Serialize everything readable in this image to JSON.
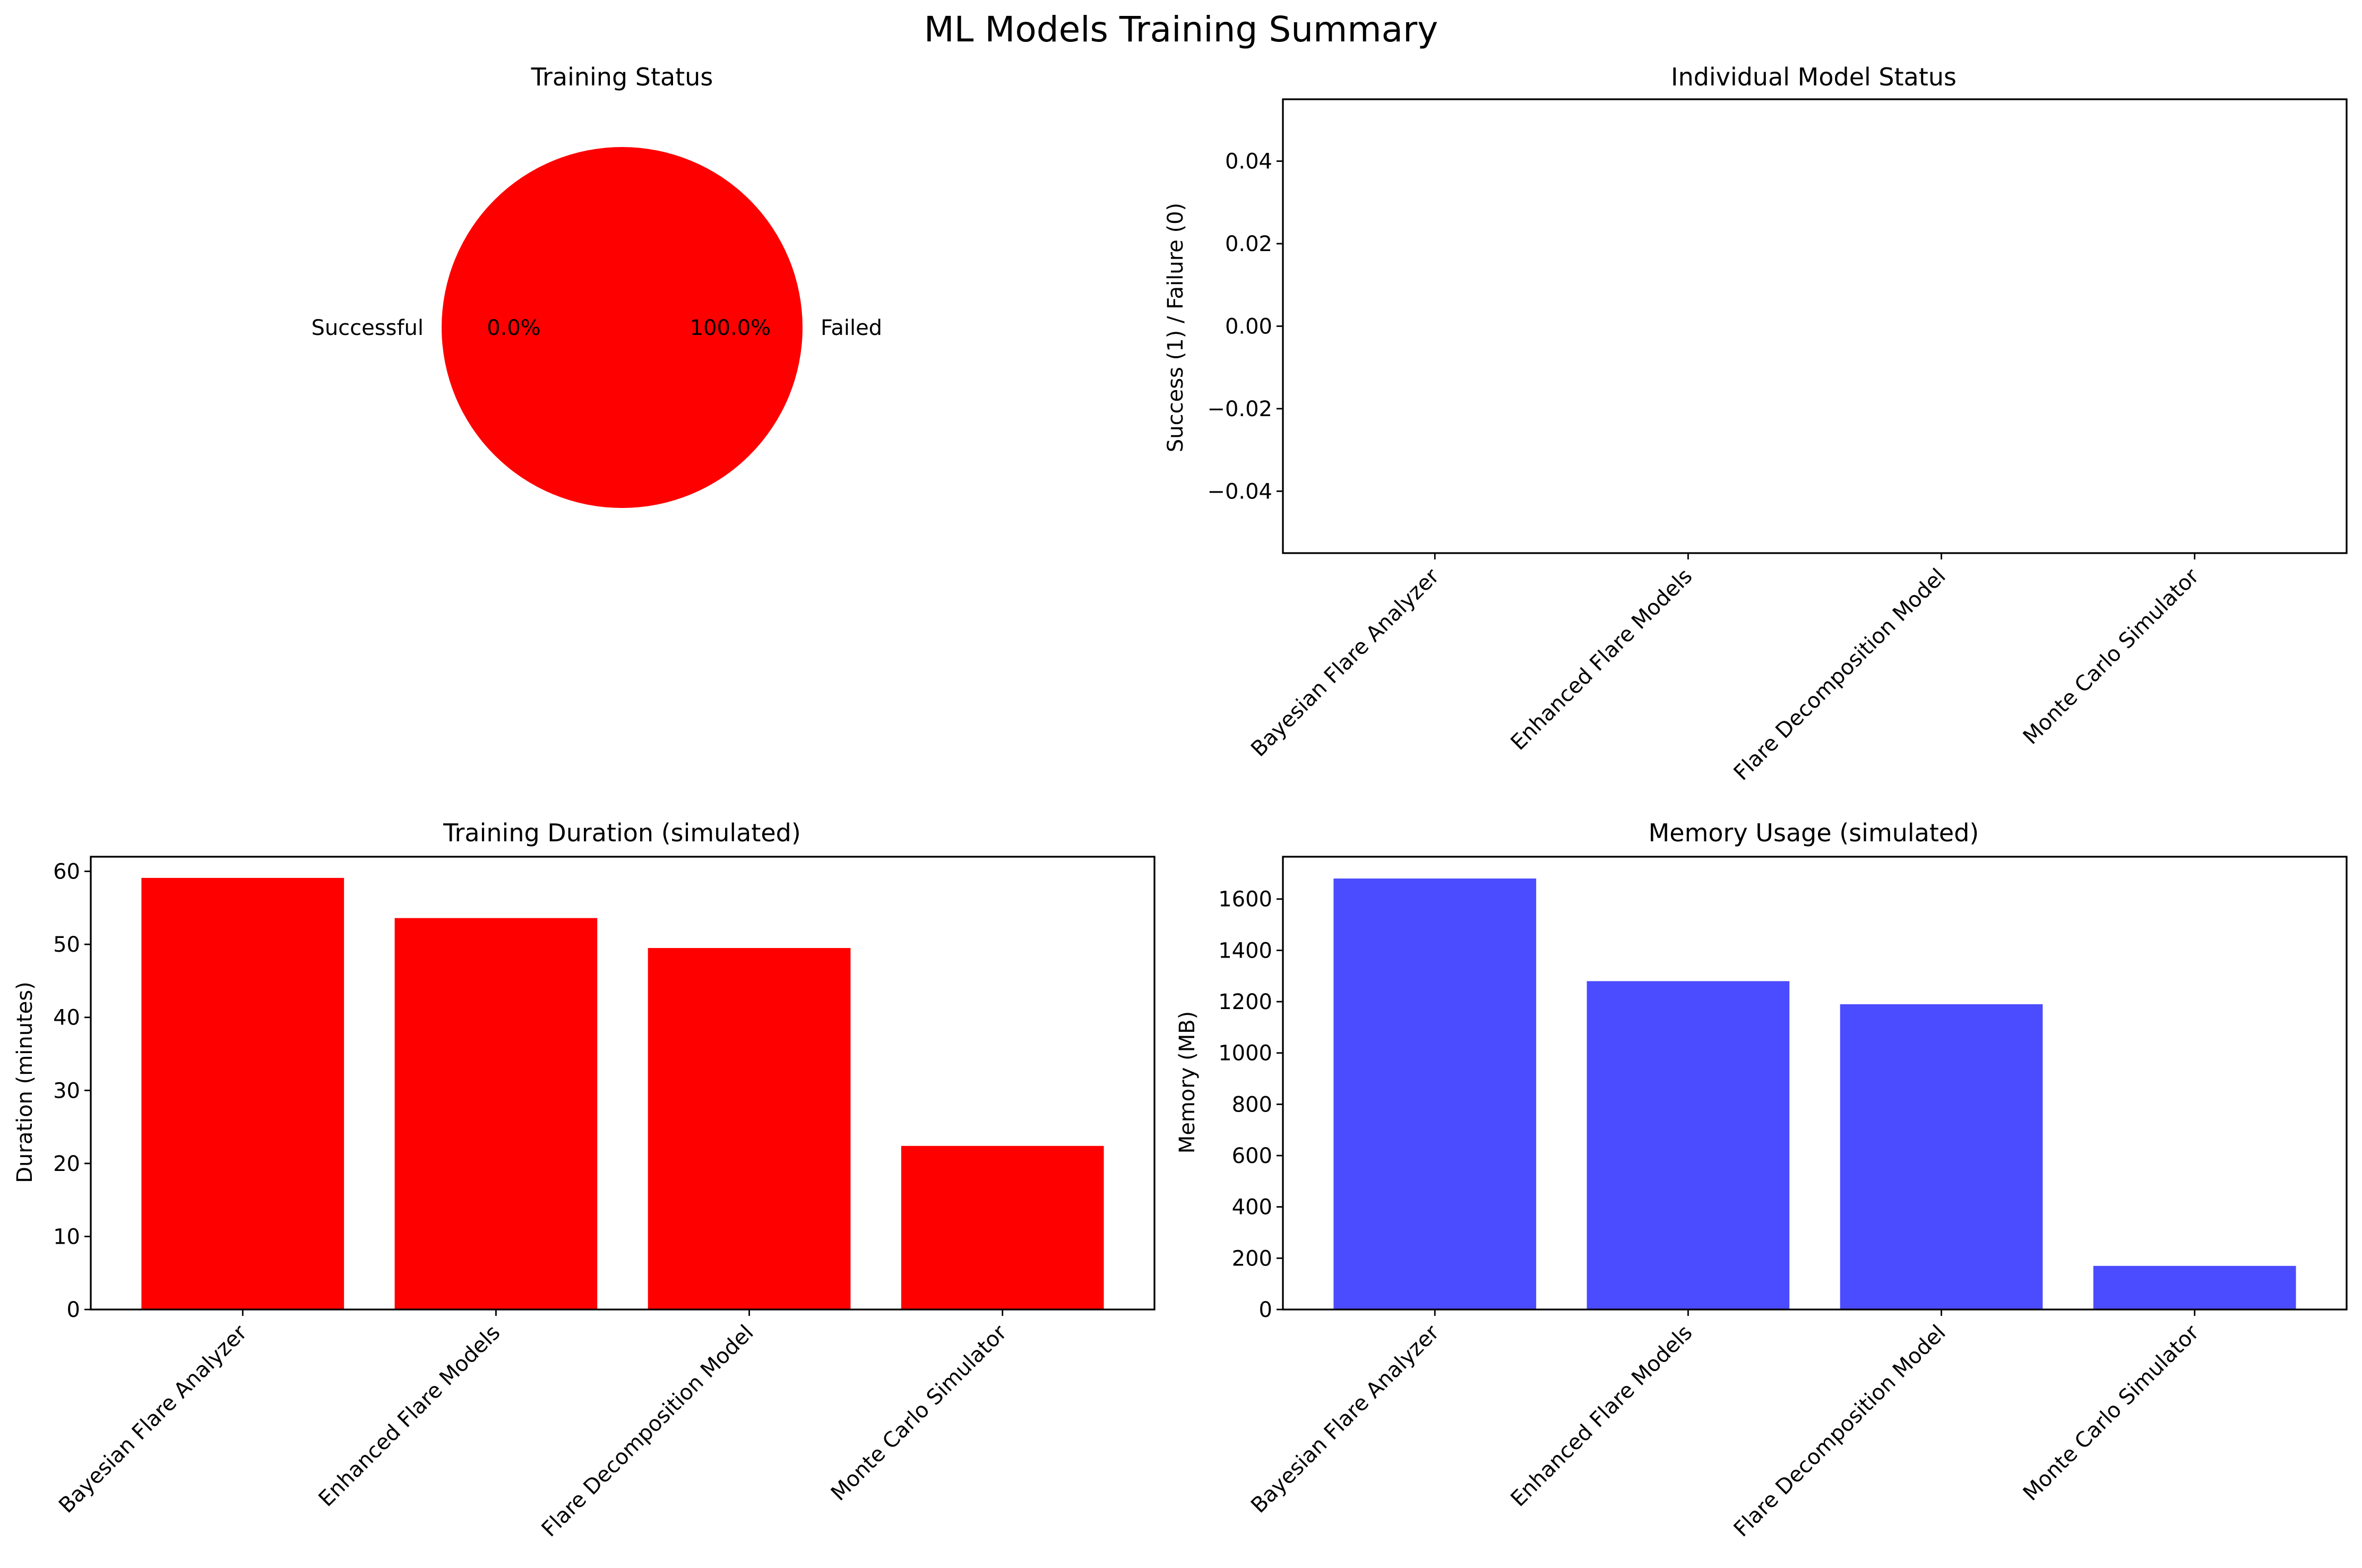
{
  "figure": {
    "title": "ML Models Training Summary"
  },
  "colors": {
    "failed": "#ff0000",
    "successful": "#008000",
    "duration_bar": "#ff0000",
    "memory_bar": "#4b4bff"
  },
  "chart_data": [
    {
      "type": "pie",
      "title": "Training Status",
      "labels": [
        "Failed",
        "Successful"
      ],
      "values": [
        1,
        0
      ],
      "autopct": [
        "100.0%",
        "0.0%"
      ],
      "colors": [
        "#ff0000",
        "#008000"
      ]
    },
    {
      "type": "bar",
      "title": "Individual Model Status",
      "xlabel": "",
      "ylabel": "Success (1) / Failure (0)",
      "categories": [
        "Bayesian Flare Analyzer",
        "Enhanced Flare Models",
        "Flare Decomposition Model",
        "Monte Carlo Simulator"
      ],
      "values": [
        0,
        0,
        0,
        0
      ],
      "ylim": [
        -0.055,
        0.055
      ],
      "yticks": [
        "0.04",
        "0.02",
        "0.00",
        "−0.02",
        "−0.04"
      ],
      "ytick_values": [
        0.04,
        0.02,
        0.0,
        -0.02,
        -0.04
      ],
      "grid": false
    },
    {
      "type": "bar",
      "title": "Training Duration (simulated)",
      "xlabel": "",
      "ylabel": "Duration (minutes)",
      "categories": [
        "Bayesian Flare Analyzer",
        "Enhanced Flare Models",
        "Flare Decomposition Model",
        "Monte Carlo Simulator"
      ],
      "values": [
        59.1,
        53.6,
        49.5,
        22.4
      ],
      "ylim": [
        0,
        62
      ],
      "yticks": [
        "0",
        "10",
        "20",
        "30",
        "40",
        "50",
        "60"
      ],
      "ytick_values": [
        0,
        10,
        20,
        30,
        40,
        50,
        60
      ],
      "color": "#ff0000",
      "grid": false
    },
    {
      "type": "bar",
      "title": "Memory Usage (simulated)",
      "xlabel": "",
      "ylabel": "Memory (MB)",
      "categories": [
        "Bayesian Flare Analyzer",
        "Enhanced Flare Models",
        "Flare Decomposition Model",
        "Monte Carlo Simulator"
      ],
      "values": [
        1680,
        1280,
        1190,
        170
      ],
      "ylim": [
        0,
        1765
      ],
      "yticks": [
        "0",
        "200",
        "400",
        "600",
        "800",
        "1000",
        "1200",
        "1400",
        "1600"
      ],
      "ytick_values": [
        0,
        200,
        400,
        600,
        800,
        1000,
        1200,
        1400,
        1600
      ],
      "color": "#4b4bff",
      "grid": false
    }
  ]
}
